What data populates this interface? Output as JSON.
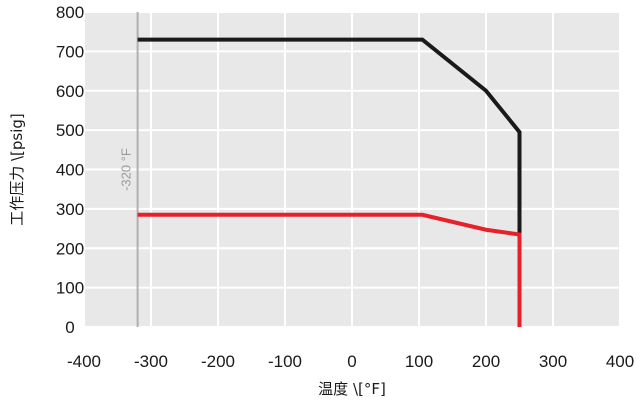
{
  "chart_data": {
    "type": "line",
    "xlabel": "温度 \\[°F]",
    "ylabel": "工作压力 \\[psig]",
    "xlim": [
      -400,
      400
    ],
    "ylim": [
      0,
      800
    ],
    "x_ticks": [
      "-400",
      "-300",
      "-200",
      "-100",
      "0",
      "100",
      "200",
      "300",
      "400"
    ],
    "y_ticks": [
      "0",
      "100",
      "200",
      "300",
      "400",
      "500",
      "600",
      "700",
      "800"
    ],
    "grid": true,
    "background_color": "#e8e8e8",
    "series": [
      {
        "color": "#1a1a1a",
        "points": [
          [
            -320,
            730
          ],
          [
            105,
            730
          ],
          [
            200,
            600
          ],
          [
            250,
            495
          ],
          [
            250,
            0
          ]
        ]
      },
      {
        "color": "#e8202a",
        "points": [
          [
            -320,
            285
          ],
          [
            105,
            285
          ],
          [
            200,
            247
          ],
          [
            250,
            235
          ],
          [
            250,
            0
          ]
        ]
      }
    ],
    "reference_line": {
      "x": -320,
      "label": "-320 °F",
      "color": "#b0b0b0"
    }
  }
}
